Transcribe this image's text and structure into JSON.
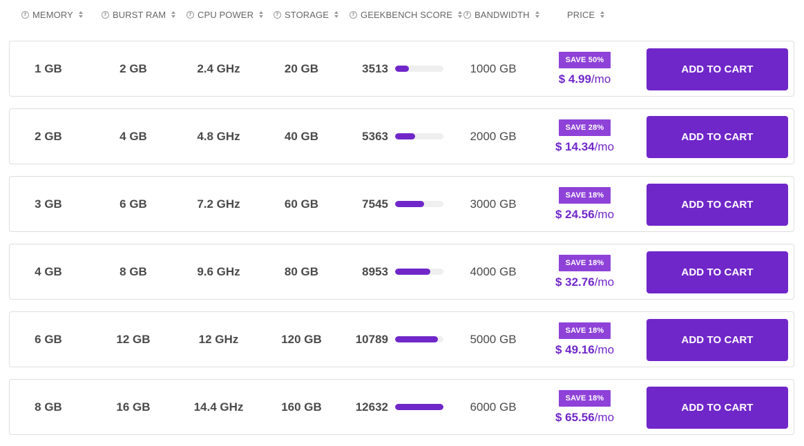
{
  "columns": [
    {
      "label": "MEMORY",
      "has_help_icon": true,
      "sortable": true
    },
    {
      "label": "BURST RAM",
      "has_help_icon": true,
      "sortable": true
    },
    {
      "label": "CPU POWER",
      "has_help_icon": true,
      "sortable": true
    },
    {
      "label": "STORAGE",
      "has_help_icon": true,
      "sortable": true
    },
    {
      "label": "GEEKBENCH SCORE",
      "has_help_icon": true,
      "sortable": true
    },
    {
      "label": "BANDWIDTH",
      "has_help_icon": true,
      "sortable": true
    },
    {
      "label": "PRICE",
      "has_help_icon": false,
      "sortable": true
    }
  ],
  "help_icon_glyph": "?",
  "accent_color": "#7027c9",
  "badge_color": "#8e42d8",
  "plans": [
    {
      "memory": "1 GB",
      "burst_ram": "2 GB",
      "cpu": "2.4 GHz",
      "storage": "20 GB",
      "geekbench": "3513",
      "geekbench_bar_fraction": 0.28,
      "bandwidth": "1000 GB",
      "save": "SAVE 50%",
      "price": "$ 4.99",
      "per": "/mo",
      "cta": "ADD TO CART"
    },
    {
      "memory": "2 GB",
      "burst_ram": "4 GB",
      "cpu": "4.8 GHz",
      "storage": "40 GB",
      "geekbench": "5363",
      "geekbench_bar_fraction": 0.42,
      "bandwidth": "2000 GB",
      "save": "SAVE 28%",
      "price": "$ 14.34",
      "per": "/mo",
      "cta": "ADD TO CART"
    },
    {
      "memory": "3 GB",
      "burst_ram": "6 GB",
      "cpu": "7.2 GHz",
      "storage": "60 GB",
      "geekbench": "7545",
      "geekbench_bar_fraction": 0.6,
      "bandwidth": "3000 GB",
      "save": "SAVE 18%",
      "price": "$ 24.56",
      "per": "/mo",
      "cta": "ADD TO CART"
    },
    {
      "memory": "4 GB",
      "burst_ram": "8 GB",
      "cpu": "9.6 GHz",
      "storage": "80 GB",
      "geekbench": "8953",
      "geekbench_bar_fraction": 0.73,
      "bandwidth": "4000 GB",
      "save": "SAVE 18%",
      "price": "$ 32.76",
      "per": "/mo",
      "cta": "ADD TO CART"
    },
    {
      "memory": "6 GB",
      "burst_ram": "12 GB",
      "cpu": "12 GHz",
      "storage": "120 GB",
      "geekbench": "10789",
      "geekbench_bar_fraction": 0.88,
      "bandwidth": "5000 GB",
      "save": "SAVE 18%",
      "price": "$ 49.16",
      "per": "/mo",
      "cta": "ADD TO CART"
    },
    {
      "memory": "8 GB",
      "burst_ram": "16 GB",
      "cpu": "14.4 GHz",
      "storage": "160 GB",
      "geekbench": "12632",
      "geekbench_bar_fraction": 1.0,
      "bandwidth": "6000 GB",
      "save": "SAVE 18%",
      "price": "$ 65.56",
      "per": "/mo",
      "cta": "ADD TO CART"
    }
  ]
}
